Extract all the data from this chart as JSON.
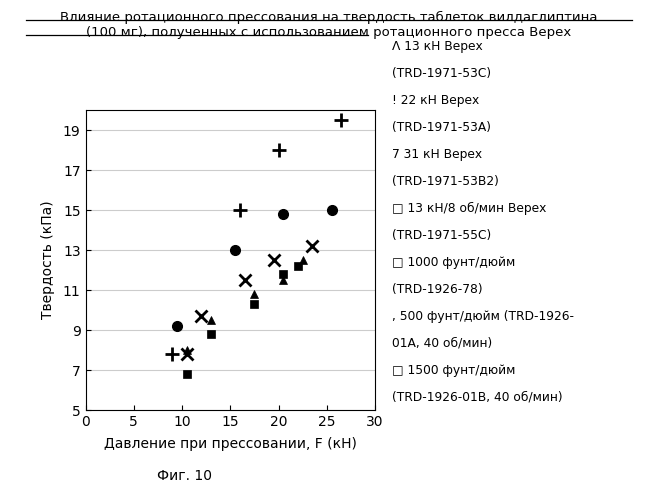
{
  "title_line1": "Влияние ротационного прессования на твердость таблеток вилдаглиптина",
  "title_line2": "(100 мг), полученных с использованием ротационного пресса Верех",
  "xlabel": "Давление при прессовании, F (кН)",
  "ylabel": "Твердость (кПа)",
  "figcaption": "Фиг. 10",
  "xlim": [
    0,
    30
  ],
  "ylim": [
    5,
    20
  ],
  "xticks": [
    0,
    5,
    10,
    15,
    20,
    25,
    30
  ],
  "yticks": [
    5,
    7,
    9,
    11,
    13,
    15,
    17,
    19
  ],
  "series": [
    {
      "marker": "+",
      "mew": 2.0,
      "ms": 10,
      "filled": false,
      "x": [
        9.0,
        16.0,
        20.0,
        26.5
      ],
      "y": [
        7.8,
        15.0,
        18.0,
        19.5
      ]
    },
    {
      "marker": "o",
      "mew": 1.0,
      "ms": 7,
      "filled": true,
      "x": [
        9.5,
        15.5,
        20.5,
        25.5
      ],
      "y": [
        9.2,
        13.0,
        14.8,
        15.0
      ]
    },
    {
      "marker": "x",
      "mew": 2.0,
      "ms": 8,
      "filled": false,
      "x": [
        10.5,
        12.0,
        16.5,
        19.5,
        23.5
      ],
      "y": [
        7.8,
        9.7,
        11.5,
        12.5,
        13.2
      ]
    },
    {
      "marker": "s",
      "mew": 0.5,
      "ms": 6,
      "filled": true,
      "x": [
        10.5,
        13.0,
        17.5,
        20.5,
        22.0
      ],
      "y": [
        6.8,
        8.8,
        10.3,
        11.8,
        12.2
      ]
    },
    {
      "marker": "^",
      "mew": 0.5,
      "ms": 6,
      "filled": true,
      "x": [
        10.5,
        13.0,
        17.5,
        20.5,
        22.5
      ],
      "y": [
        8.0,
        9.5,
        10.8,
        11.5,
        12.5
      ]
    }
  ],
  "legend_lines": [
    "Λ 13 кН Верех",
    "(TRD-1971-53C)",
    "! 22 кН Верех",
    "(TRD-1971-53A)",
    "7 31 кН Верех",
    "(TRD-1971-53B2)",
    "□ 13 кН/8 об/мин Верех",
    "(TRD-1971-55C)",
    "□ 1000 фунт/дюйм",
    "(TRD-1926-78)",
    ", 500 фунт/дюйм (TRD-1926-",
    "01A, 40 об/мин)",
    "□ 1500 фунт/дюйм",
    "(TRD-1926-01B, 40 об/мин)"
  ],
  "background_color": "#ffffff"
}
